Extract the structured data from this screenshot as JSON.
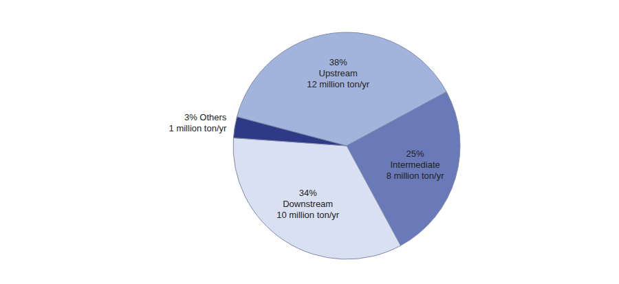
{
  "chart_data": {
    "type": "pie",
    "categories": [
      "Upstream",
      "Intermediate",
      "Downstream",
      "Others"
    ],
    "values": [
      38,
      25,
      34,
      3
    ],
    "value_labels": [
      "38%",
      "25%",
      "34%",
      "3%"
    ],
    "sublabels": [
      "12 million ton/yr",
      "8 million ton/yr",
      "10 million ton/yr",
      "1 million ton/yr"
    ],
    "colors": [
      "#a3b4dc",
      "#6a79b8",
      "#d9e0f1",
      "#2f3a86"
    ],
    "data_labels": true
  }
}
